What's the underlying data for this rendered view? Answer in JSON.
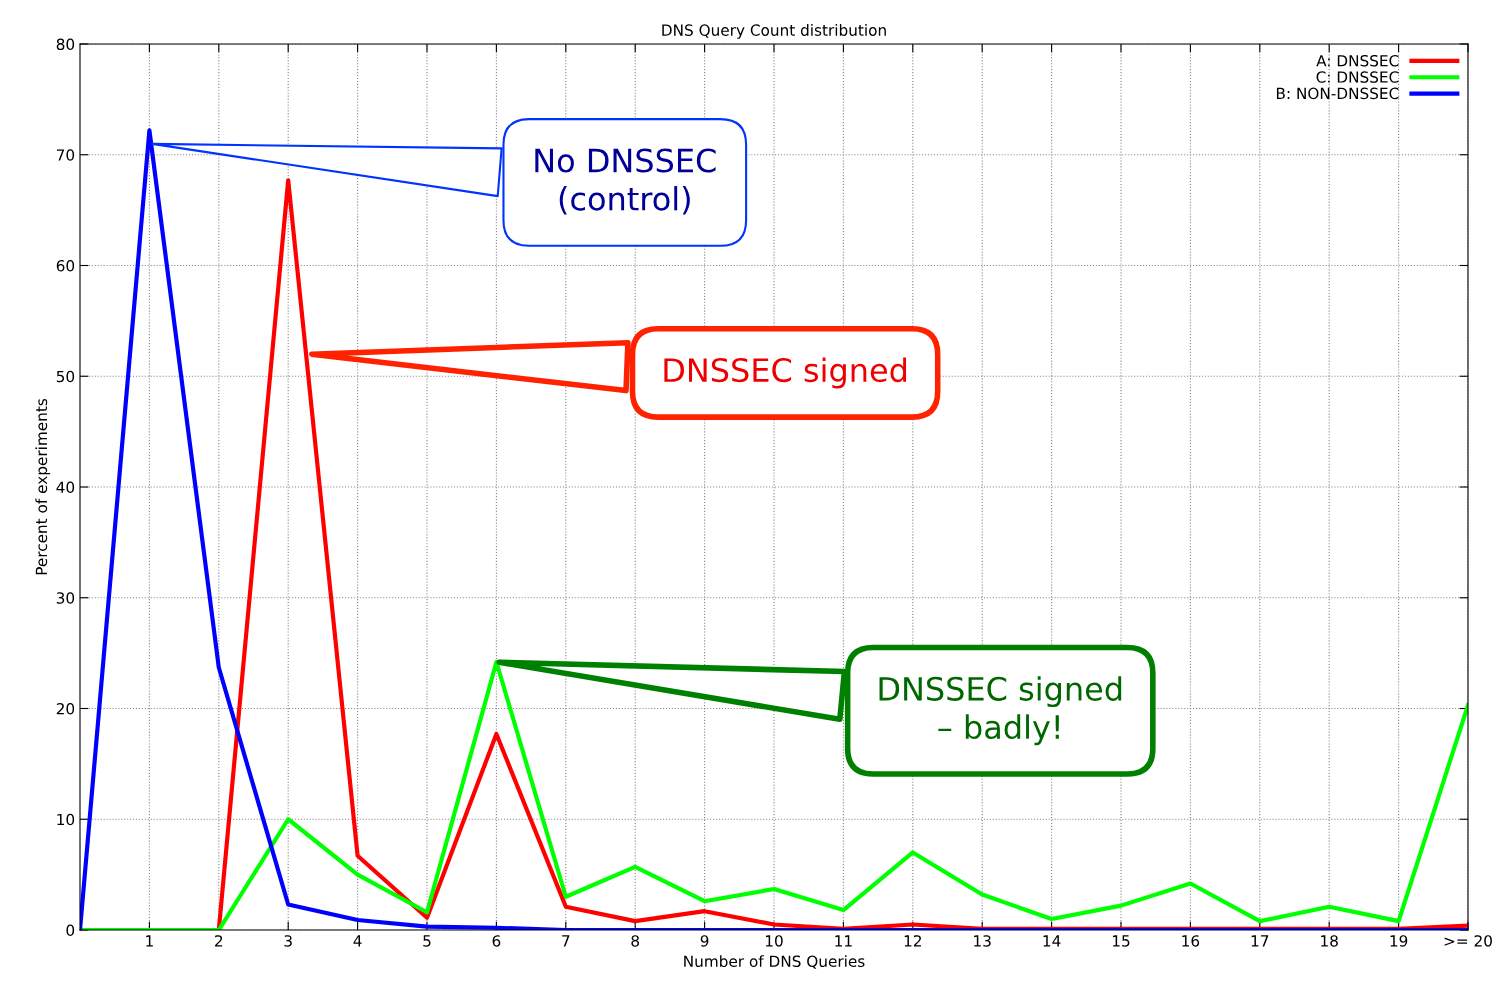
{
  "chart_data": {
    "type": "line",
    "title": "DNS Query Count distribution",
    "xlabel": "Number of DNS Queries",
    "ylabel": "Percent of experiments",
    "x": [
      0,
      1,
      2,
      3,
      4,
      5,
      6,
      7,
      8,
      9,
      10,
      11,
      12,
      13,
      14,
      15,
      16,
      17,
      18,
      19,
      20
    ],
    "series": [
      {
        "name": "A: DNSSEC",
        "color": "#ff0000",
        "values": [
          0,
          0,
          0,
          67.7,
          6.7,
          1.1,
          17.7,
          2.1,
          0.8,
          1.7,
          0.5,
          0.1,
          0.5,
          0.1,
          0.1,
          0.1,
          0.1,
          0.1,
          0.1,
          0.1,
          0.4
        ]
      },
      {
        "name": "C: DNSSEC",
        "color": "#00ff00",
        "values": [
          0,
          0,
          0,
          10,
          5.0,
          1.6,
          24.2,
          3.0,
          5.7,
          2.6,
          3.7,
          1.8,
          7.0,
          3.2,
          1.0,
          2.2,
          4.2,
          0.8,
          2.1,
          0.8,
          20.3
        ]
      },
      {
        "name": "B: NON-DNSSEC",
        "color": "#0000ff",
        "values": [
          0,
          72.2,
          23.7,
          2.3,
          0.9,
          0.3,
          0.2,
          0,
          0,
          0,
          0,
          0,
          0,
          0,
          0,
          0,
          0,
          0,
          0,
          0,
          0
        ]
      }
    ],
    "xlim": [
      0,
      20
    ],
    "xticks": [
      1,
      2,
      3,
      4,
      5,
      6,
      7,
      8,
      9,
      10,
      11,
      12,
      13,
      14,
      15,
      16,
      17,
      18,
      19,
      {
        "value": 20,
        "label": ">= 20"
      }
    ],
    "ylim": [
      0,
      80
    ],
    "yticks": [
      0,
      10,
      20,
      30,
      40,
      50,
      60,
      70,
      80
    ],
    "grid": true,
    "legend": "top right",
    "marker": "none",
    "line_style": "solid",
    "annotations": [
      {
        "text": "No DNSSEC\n(control)",
        "x": 1,
        "y": 71
      },
      {
        "text": "DNSSEC signed",
        "x": 3.3,
        "y": 52
      },
      {
        "text": "DNSSEC signed\n– badly!",
        "x": 6,
        "y": 24.2
      }
    ]
  }
}
